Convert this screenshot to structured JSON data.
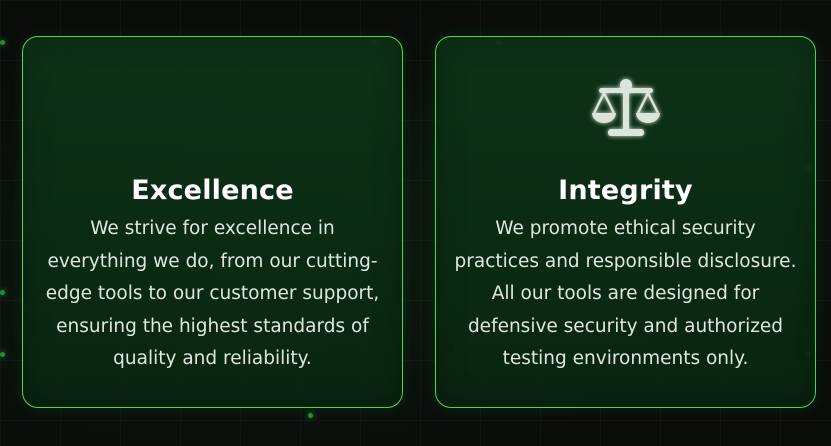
{
  "cards": [
    {
      "title": "Excellence",
      "description": "We strive for excellence in everything we do, from our cutting-edge tools to our customer support, ensuring the highest standards of quality and reliability."
    },
    {
      "icon": "scale-icon",
      "title": "Integrity",
      "description": "We promote ethical security practices and responsible disclosure. All our tools are designed for defensive security and authorized testing environments only."
    }
  ],
  "colors": {
    "accent": "#3fd85a",
    "card_background": "#0c3418",
    "page_background": "#0a0c0a",
    "icon": "#d9e6d9"
  }
}
